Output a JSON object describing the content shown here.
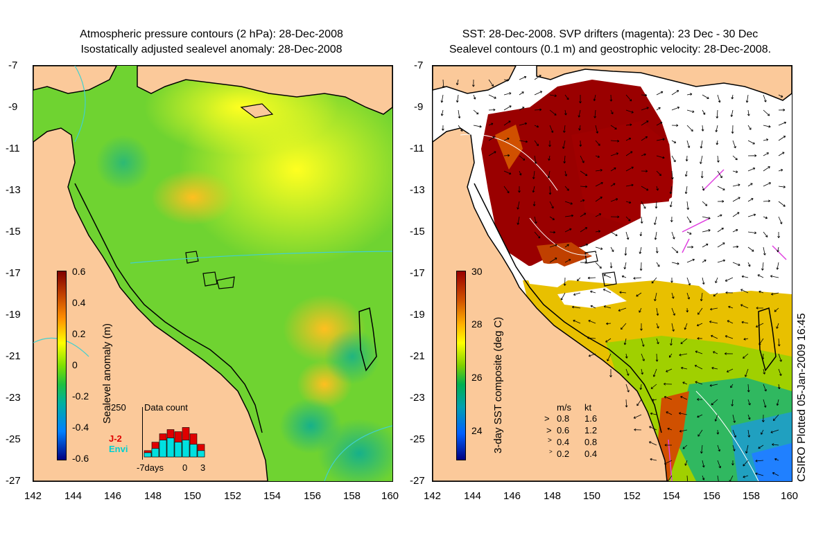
{
  "left_panel": {
    "title_line1": "Atmospheric pressure contours (2 hPa): 28-Dec-2008",
    "title_line2": "Isostatically adjusted sealevel anomaly: 28-Dec-2008",
    "y_ticks": [
      "-7",
      "-9",
      "-11",
      "-13",
      "-15",
      "-17",
      "-19",
      "-21",
      "-23",
      "-25",
      "-27"
    ],
    "x_ticks": [
      "142",
      "144",
      "146",
      "148",
      "150",
      "152",
      "154",
      "156",
      "158",
      "160"
    ],
    "colorbar": {
      "title": "Sealevel anomaly (m)",
      "labels": [
        "0.6",
        "0.4",
        "0.2",
        "0",
        "-0.2",
        "-0.4",
        "-0.6"
      ]
    },
    "inset": {
      "title": "Data count",
      "max_label": "250",
      "series": [
        "J-2",
        "Envi"
      ],
      "series_colors": [
        "#e00000",
        "#00e0e0"
      ],
      "x_labels": [
        "-7days",
        "0",
        "3"
      ],
      "bars_j2": [
        30,
        70,
        110,
        130,
        120,
        140,
        110,
        60
      ],
      "bars_envi": [
        20,
        40,
        80,
        90,
        70,
        80,
        60,
        30
      ]
    }
  },
  "right_panel": {
    "title_line1": "SST: 28-Dec-2008. SVP drifters (magenta): 23 Dec - 30 Dec",
    "title_line2": "Sealevel contours (0.1 m) and geostrophic velocity: 28-Dec-2008.",
    "y_ticks": [
      "-7",
      "-9",
      "-11",
      "-13",
      "-15",
      "-17",
      "-19",
      "-21",
      "-23",
      "-25",
      "-27"
    ],
    "x_ticks": [
      "142",
      "144",
      "146",
      "148",
      "150",
      "152",
      "154",
      "156",
      "158",
      "160"
    ],
    "colorbar": {
      "title": "3-day SST composite (deg C)",
      "labels": [
        "30",
        "28",
        "26",
        "24"
      ]
    },
    "legend": {
      "header_ms": "m/s",
      "header_kt": "kt",
      "rows": [
        {
          "ms": "0.8",
          "kt": "1.6"
        },
        {
          "ms": "0.6",
          "kt": "1.2"
        },
        {
          "ms": "0.4",
          "kt": "0.8"
        },
        {
          "ms": "0.2",
          "kt": "0.4"
        }
      ]
    }
  },
  "credit": "CSIRO Plotted 05-Jan-2009 16:45",
  "colors": {
    "land": "#fbc99a",
    "sla_colormap": [
      "#800000",
      "#c04000",
      "#ff9000",
      "#ffff00",
      "#80e000",
      "#20c040",
      "#00b0a0",
      "#0080ff",
      "#000080"
    ],
    "sst_colormap": [
      "#990000",
      "#d05000",
      "#ffb000",
      "#ffff00",
      "#80d000",
      "#00b050",
      "#00a0b0",
      "#0060ff",
      "#000080"
    ]
  }
}
